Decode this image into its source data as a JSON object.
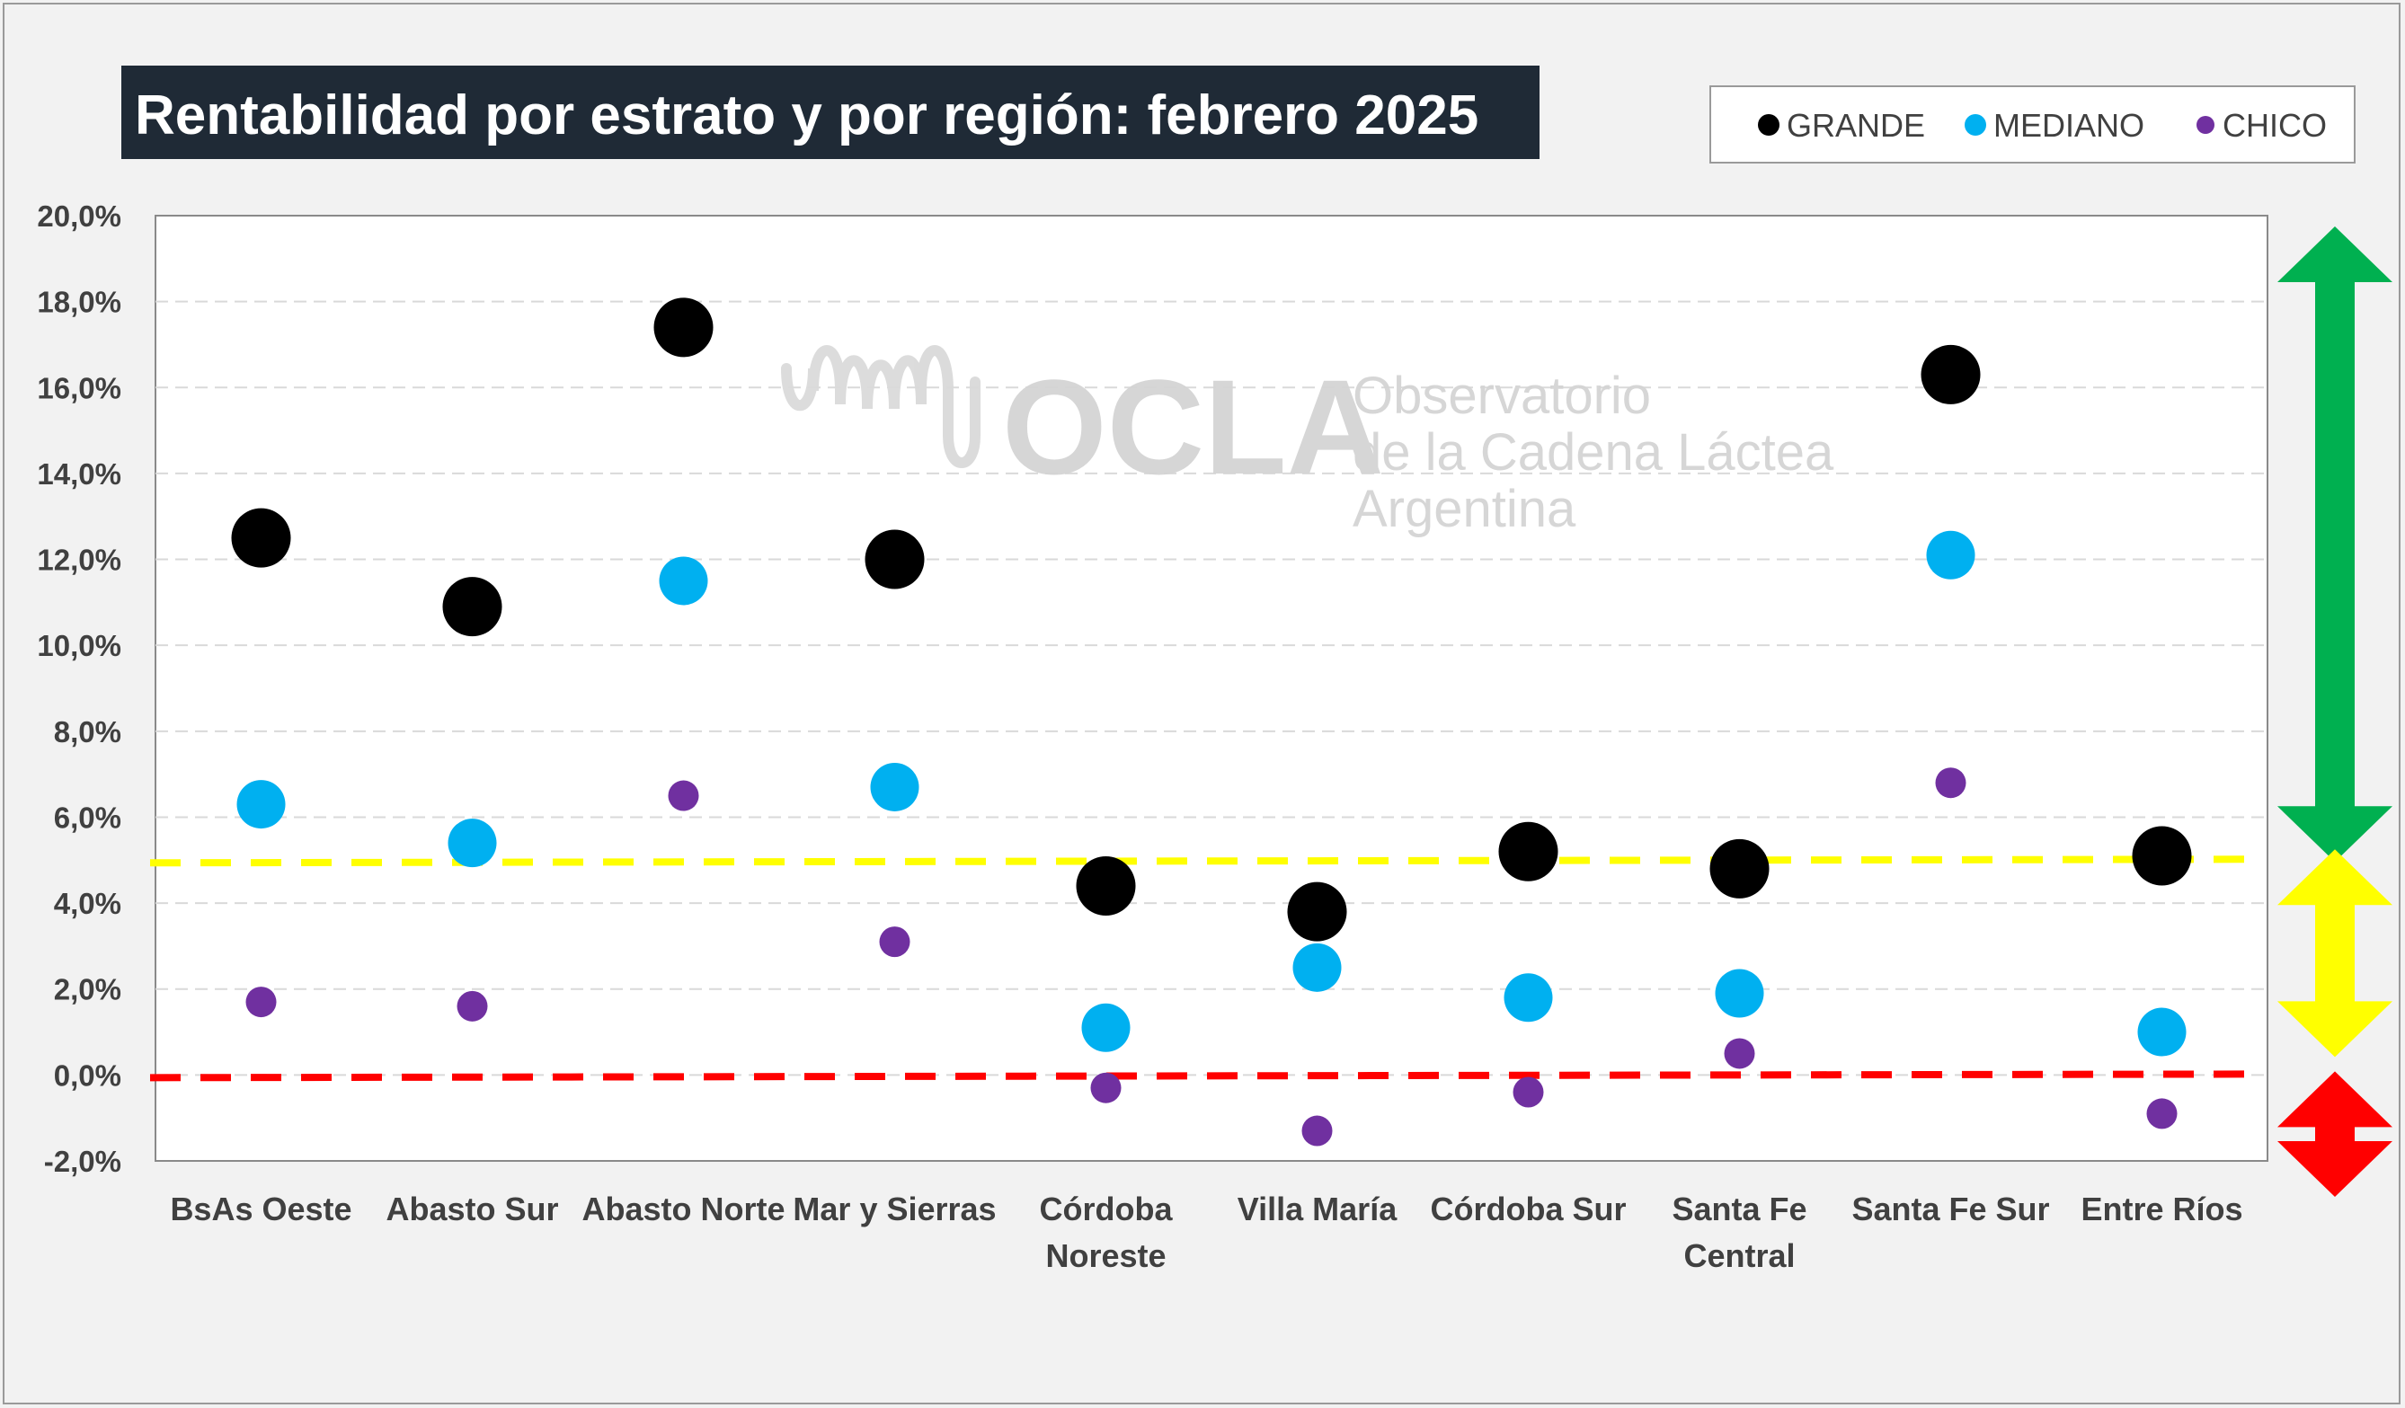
{
  "chart_data": {
    "type": "scatter",
    "title": "Rentabilidad por estrato y por región: febrero 2025",
    "xlabel": "",
    "ylabel": "",
    "categories": [
      "BsAs Oeste",
      "Abasto Sur",
      "Abasto Norte",
      "Mar y Sierras",
      "Córdoba Noreste",
      "Villa María",
      "Córdoba Sur",
      "Santa Fe Central",
      "Santa Fe Sur",
      "Entre Ríos"
    ],
    "ylim": [
      -2,
      20
    ],
    "yticks": [
      "-2,0%",
      "0,0%",
      "2,0%",
      "4,0%",
      "6,0%",
      "8,0%",
      "10,0%",
      "12,0%",
      "14,0%",
      "16,0%",
      "18,0%",
      "20,0%"
    ],
    "grid": true,
    "legend_position": "top-right",
    "series": [
      {
        "name": "GRANDE",
        "color": "#000000",
        "values": [
          12.5,
          10.9,
          17.4,
          12.0,
          4.4,
          3.8,
          5.2,
          4.8,
          16.3,
          5.1
        ]
      },
      {
        "name": "MEDIANO",
        "color": "#00b0f0",
        "values": [
          6.3,
          5.4,
          11.5,
          6.7,
          1.1,
          2.5,
          1.8,
          1.9,
          12.1,
          1.0
        ]
      },
      {
        "name": "CHICO",
        "color": "#7030a0",
        "values": [
          1.7,
          1.6,
          6.5,
          3.1,
          -0.3,
          -1.3,
          -0.4,
          0.5,
          6.8,
          -0.9
        ]
      }
    ],
    "reference_lines": [
      {
        "value": 5.0,
        "color": "#ffff00",
        "style": "dashed"
      },
      {
        "value": 0.0,
        "color": "#ff0000",
        "style": "dashed"
      }
    ],
    "zone_arrows": [
      {
        "range": [
          5,
          20
        ],
        "color": "#00b050"
      },
      {
        "range": [
          0,
          5
        ],
        "color": "#ffff00"
      },
      {
        "range": [
          -2,
          0
        ],
        "color": "#ff0000"
      }
    ]
  },
  "watermark": {
    "logo": "OCLA",
    "line1": "Observatorio",
    "line2": "de la Cadena Láctea",
    "line3": "Argentina"
  }
}
